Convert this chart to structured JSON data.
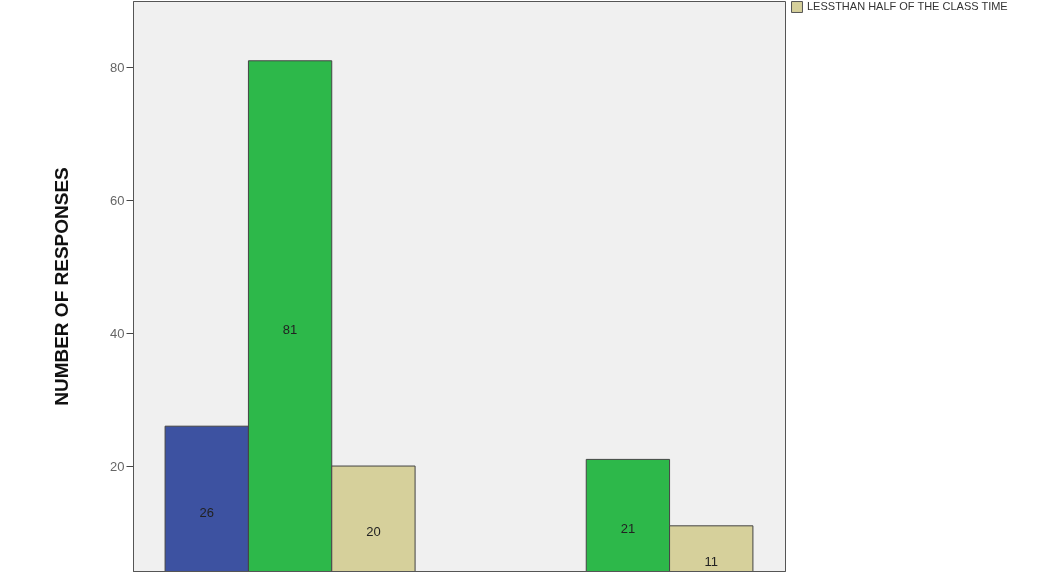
{
  "chart_data": {
    "type": "bar",
    "ylabel": "NUMBER OF RESPONSES",
    "categories": [
      null,
      null
    ],
    "series": [
      {
        "color": "#3d52a1",
        "values": [
          26,
          null
        ]
      },
      {
        "color": "#2db84a",
        "values": [
          81,
          21
        ]
      },
      {
        "name": "LESSTHAN HALF OF THE CLASS TIME",
        "color": "#d6d09b",
        "values": [
          20,
          11
        ]
      }
    ],
    "ylim": [
      4.2,
      90
    ],
    "yticks": [
      20,
      40,
      60,
      80
    ],
    "data_labels": true,
    "legend": "top right",
    "grid": false
  }
}
